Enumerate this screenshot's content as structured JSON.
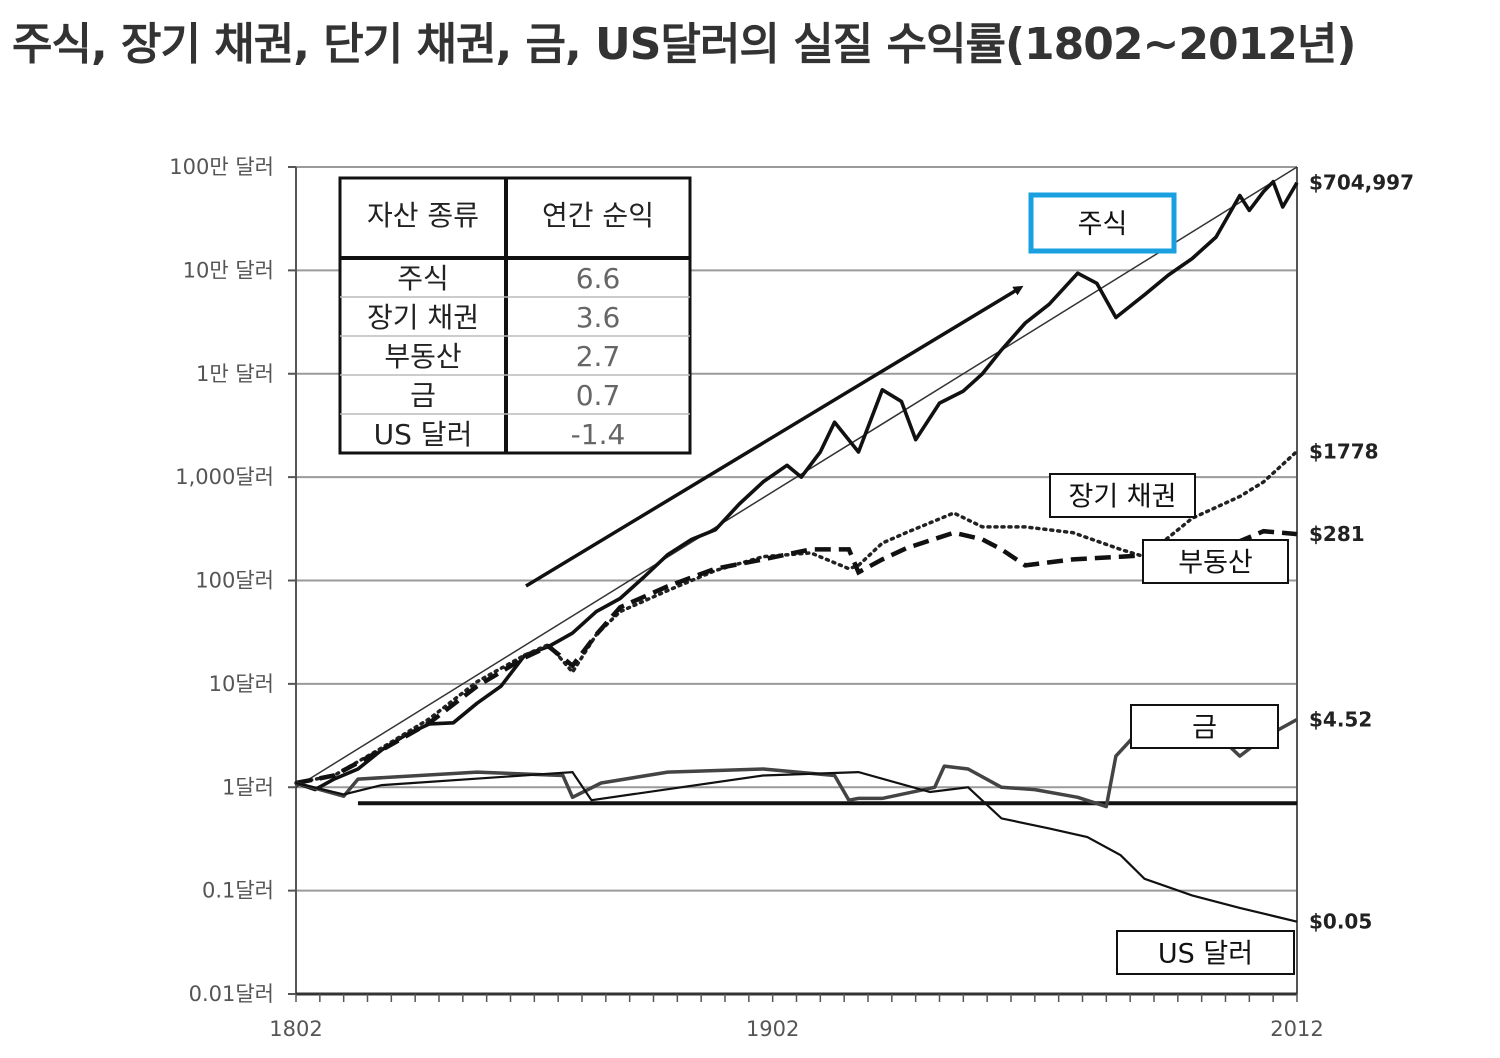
{
  "title": "주식, 장기 채권, 단기 채권, 금, US달러의 실질 수익률(1802~2012년)",
  "chart_data": {
    "type": "line",
    "yscale": "log",
    "ylim": [
      0.01,
      1000000
    ],
    "xlim": [
      1802,
      2012
    ],
    "y_tick_values": [
      1000000,
      100000,
      10000,
      1000,
      100,
      10,
      1,
      0.1,
      0.01
    ],
    "y_tick_labels": [
      "100만 달러",
      "10만 달러",
      "1만 달러",
      "1,000달러",
      "100달러",
      "10달러",
      "1달러",
      "0.1달러",
      "0.01달러"
    ],
    "x_tick_labels": [
      "1802",
      "1902",
      "2012"
    ],
    "x_tick_values": [
      1802,
      1902,
      2012
    ],
    "grid": true,
    "baseline_y": 0.7,
    "table": {
      "headers": [
        "자산 종류",
        "연간 순익"
      ],
      "rows": [
        [
          "주식",
          "6.6"
        ],
        [
          "장기 채권",
          "3.6"
        ],
        [
          "부동산",
          "2.7"
        ],
        [
          "금",
          "0.7"
        ],
        [
          "US 달러",
          "-1.4"
        ]
      ]
    },
    "series": [
      {
        "key": "stocks",
        "name": "주식",
        "end_label": "$704,997",
        "style": "solid-thick",
        "x": [
          1802,
          1806,
          1810,
          1815,
          1820,
          1825,
          1830,
          1835,
          1840,
          1845,
          1850,
          1855,
          1860,
          1865,
          1870,
          1875,
          1880,
          1885,
          1890,
          1895,
          1900,
          1905,
          1908,
          1912,
          1915,
          1920,
          1925,
          1929,
          1932,
          1937,
          1942,
          1946,
          1950,
          1955,
          1960,
          1966,
          1970,
          1974,
          1980,
          1985,
          1990,
          1995,
          2000,
          2002,
          2005,
          2007,
          2009,
          2012
        ],
        "y": [
          1.1,
          0.95,
          1.2,
          1.5,
          2.3,
          3.2,
          4.1,
          4.2,
          6.5,
          9.5,
          19,
          23,
          31,
          50,
          67,
          108,
          178,
          250,
          310,
          550,
          900,
          1300,
          1000,
          1750,
          3400,
          1750,
          7000,
          5400,
          2300,
          5200,
          6800,
          10000,
          17000,
          31000,
          47000,
          94000,
          75000,
          35000,
          58000,
          90000,
          130000,
          210000,
          530000,
          380000,
          580000,
          720000,
          410000,
          704997
        ]
      },
      {
        "key": "bonds",
        "name": "장기 채권",
        "end_label": "$1778",
        "style": "dotted",
        "x": [
          1802,
          1810,
          1820,
          1830,
          1840,
          1850,
          1855,
          1860,
          1865,
          1870,
          1880,
          1890,
          1900,
          1910,
          1918,
          1920,
          1925,
          1930,
          1940,
          1946,
          1955,
          1965,
          1975,
          1980,
          1985,
          1990,
          2000,
          2005,
          2012
        ],
        "y": [
          1.1,
          1.3,
          2.4,
          4.6,
          10.5,
          19,
          24,
          13,
          30,
          50,
          80,
          125,
          170,
          185,
          130,
          140,
          230,
          290,
          450,
          330,
          330,
          290,
          200,
          170,
          260,
          400,
          650,
          900,
          1778
        ]
      },
      {
        "key": "realestate",
        "name": "부동산",
        "end_label": "$281",
        "style": "dashed",
        "x": [
          1802,
          1810,
          1820,
          1830,
          1840,
          1850,
          1855,
          1860,
          1865,
          1870,
          1880,
          1890,
          1900,
          1910,
          1918,
          1920,
          1925,
          1930,
          1940,
          1946,
          1950,
          1955,
          1965,
          1975,
          1985,
          1990,
          2000,
          2005,
          2012
        ],
        "y": [
          1.1,
          1.3,
          2.3,
          4.2,
          9.5,
          18,
          23,
          15,
          30,
          55,
          88,
          130,
          160,
          200,
          200,
          120,
          160,
          205,
          290,
          250,
          200,
          140,
          160,
          170,
          180,
          170,
          240,
          300,
          281
        ]
      },
      {
        "key": "gold",
        "name": "금",
        "end_label": "$4.52",
        "style": "solid-gray",
        "x": [
          1802,
          1812,
          1815,
          1840,
          1858,
          1860,
          1866,
          1880,
          1900,
          1915,
          1918,
          1920,
          1925,
          1936,
          1938,
          1943,
          1950,
          1957,
          1966,
          1972,
          1974,
          1980,
          1985,
          1990,
          1996,
          2000,
          2005,
          2012
        ],
        "y": [
          1.1,
          0.82,
          1.2,
          1.4,
          1.3,
          0.8,
          1.1,
          1.4,
          1.5,
          1.3,
          0.75,
          0.78,
          0.78,
          1.0,
          1.6,
          1.5,
          1.0,
          0.95,
          0.8,
          0.65,
          2.0,
          4.0,
          2.6,
          3.8,
          3.0,
          2.0,
          3.0,
          4.52
        ]
      },
      {
        "key": "usd",
        "name": "US 달러",
        "end_label": "$0.05",
        "style": "solid-thin",
        "x": [
          1802,
          1812,
          1820,
          1860,
          1864,
          1900,
          1920,
          1935,
          1943,
          1950,
          1960,
          1968,
          1975,
          1980,
          1990,
          2000,
          2012
        ],
        "y": [
          1.1,
          0.85,
          1.05,
          1.4,
          0.75,
          1.3,
          1.4,
          0.9,
          1.0,
          0.5,
          0.4,
          0.33,
          0.22,
          0.13,
          0.09,
          0.068,
          0.05
        ]
      }
    ]
  }
}
